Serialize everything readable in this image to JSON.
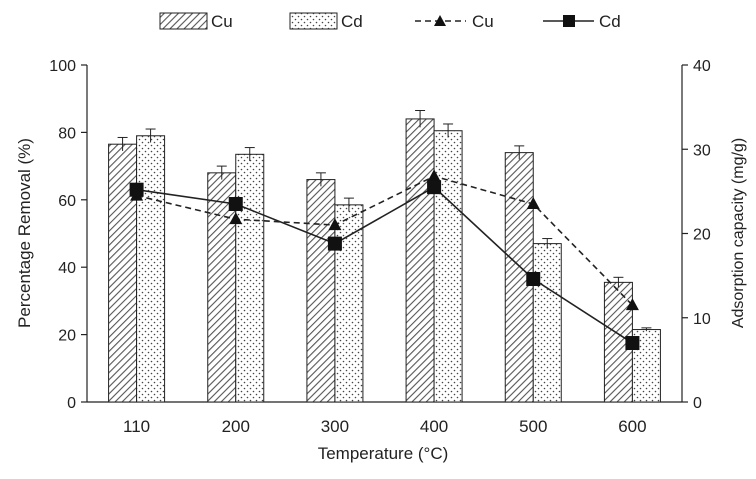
{
  "chart_data": {
    "type": "bar",
    "categories": [
      "110",
      "200",
      "300",
      "400",
      "500",
      "600"
    ],
    "xlabel": "Temperature (°C)",
    "ylabel": "Percentage Removal (%)",
    "y2label": "Adsorption capacity (mg/g)",
    "ylim": [
      0,
      100
    ],
    "y2lim": [
      0,
      40
    ],
    "yticks": [
      "0",
      "20",
      "40",
      "60",
      "80",
      "100"
    ],
    "y2ticks": [
      "0",
      "10",
      "20",
      "30",
      "40"
    ],
    "grid": false,
    "legend_position": "top",
    "bar_series": [
      {
        "name": "Cu",
        "pattern": "diagonal-hatch",
        "values": [
          76.5,
          68,
          66,
          84,
          74,
          35.5
        ],
        "errors": [
          2,
          2,
          2,
          2.5,
          2,
          1.5
        ]
      },
      {
        "name": "Cd",
        "pattern": "dots",
        "values": [
          79,
          73.5,
          58.5,
          80.5,
          47,
          21.5
        ],
        "errors": [
          2,
          2,
          2,
          2,
          1.5,
          0.5
        ]
      }
    ],
    "line_series": [
      {
        "name": "Cu",
        "axis": "right",
        "style": "dashed",
        "marker": "triangle",
        "values": [
          24.5,
          21.7,
          21,
          26.8,
          23.5,
          11.5
        ]
      },
      {
        "name": "Cd",
        "axis": "right",
        "style": "solid",
        "marker": "square",
        "values": [
          25.2,
          23.5,
          18.8,
          25.5,
          14.6,
          7
        ]
      }
    ],
    "colors": {
      "stroke": "#222222",
      "bar_fill": "#ffffff",
      "hatch": "#555555"
    }
  }
}
